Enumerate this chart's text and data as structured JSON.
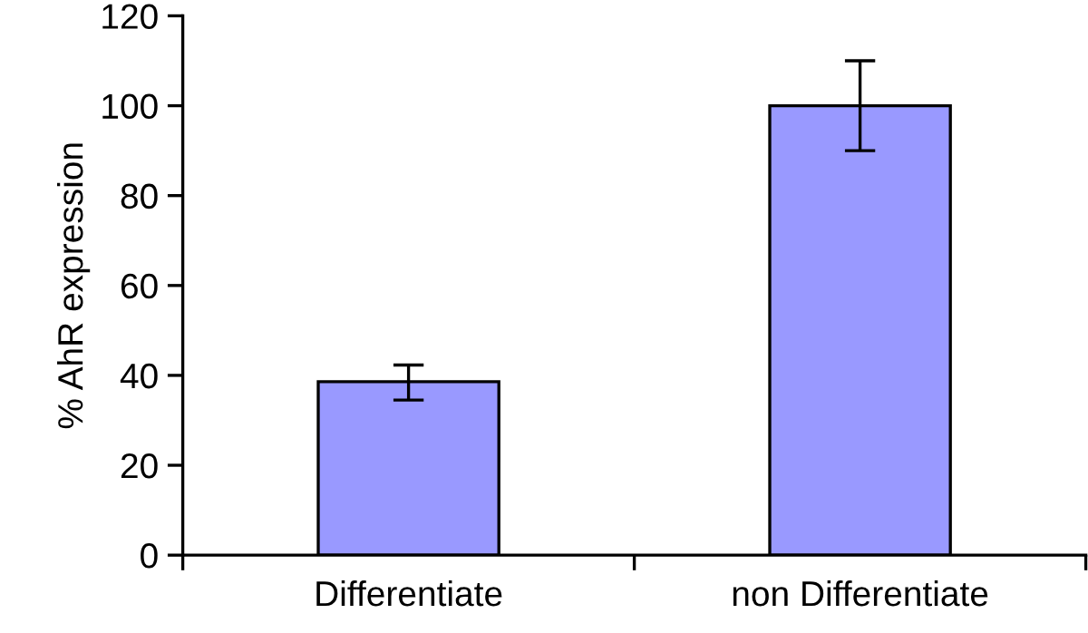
{
  "chart_data": {
    "type": "bar",
    "ylabel": "% AhR expression",
    "categories": [
      "Differentiate",
      "non Differentiate"
    ],
    "values": [
      38.6,
      100
    ],
    "errors": [
      [
        34.5,
        42.3
      ],
      [
        90,
        110
      ]
    ],
    "color": "#9999ff",
    "ylim": [
      0,
      120
    ],
    "yticks": [
      0,
      20,
      40,
      60,
      80,
      100,
      120
    ],
    "grid": false,
    "legend": false
  }
}
